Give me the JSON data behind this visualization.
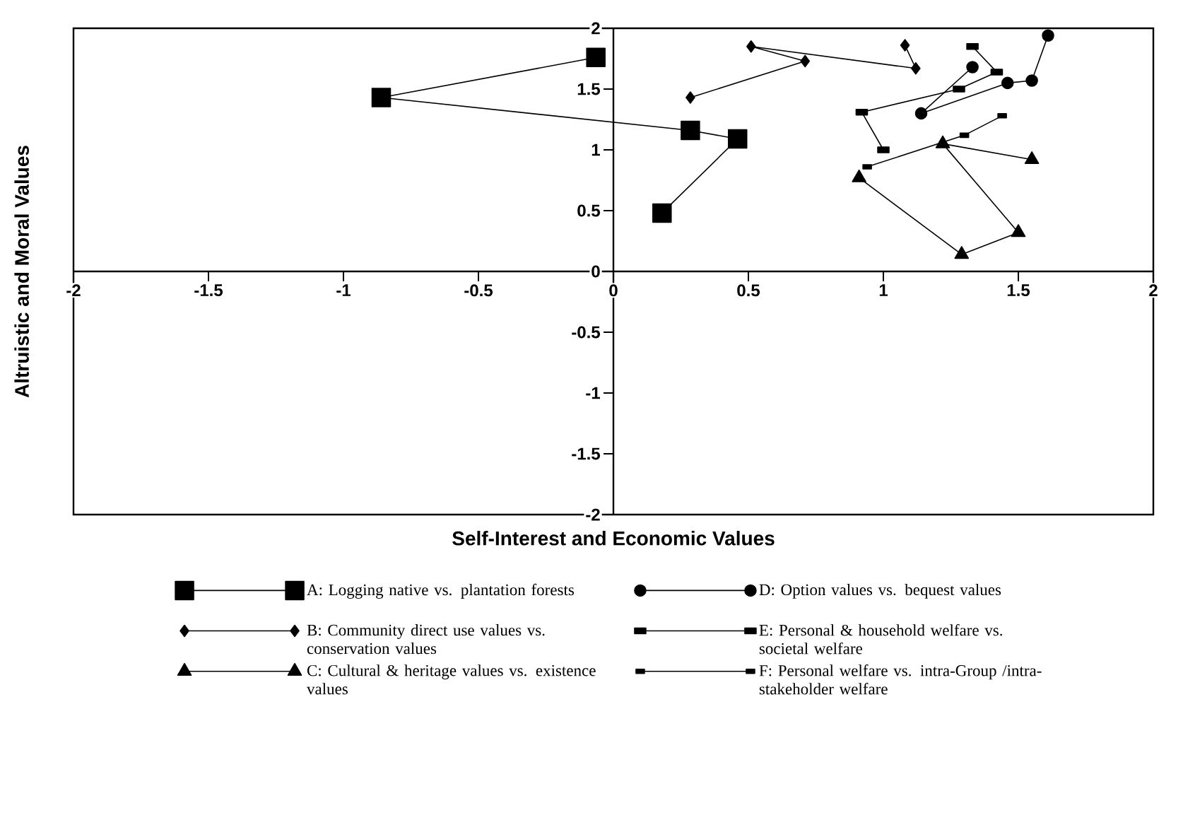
{
  "chart_data": {
    "type": "line",
    "xlabel": "Self-Interest and Economic Values",
    "ylabel": "Altruistic and Moral Values",
    "xlim": [
      -2,
      2
    ],
    "ylim": [
      -2,
      2
    ],
    "xticks": [
      -2,
      -1.5,
      -1,
      -0.5,
      0,
      0.5,
      1,
      1.5,
      2
    ],
    "yticks": [
      -2,
      -1.5,
      -1,
      -0.5,
      0,
      0.5,
      1,
      1.5,
      2
    ],
    "grid": false,
    "legend": "bottom",
    "line_style": "solid",
    "series": [
      {
        "name": "A: Logging native vs. plantation forests",
        "color": "#000000",
        "marker": "square",
        "x": [
          0.18,
          0.46,
          0.285,
          -0.86,
          -0.065
        ],
        "values": [
          0.48,
          1.09,
          1.16,
          1.43,
          1.76
        ]
      },
      {
        "name": "B: Community direct use values vs. conservation values",
        "color": "#000000",
        "marker": "diamond",
        "x": [
          0.285,
          0.71,
          0.51,
          1.12,
          1.08
        ],
        "values": [
          1.43,
          1.73,
          1.85,
          1.67,
          1.86
        ]
      },
      {
        "name": "C: Cultural & heritage values vs. existence values",
        "color": "#000000",
        "marker": "triangle",
        "x": [
          1.55,
          1.22,
          1.5,
          1.29,
          0.91
        ],
        "values": [
          0.92,
          1.05,
          0.32,
          0.14,
          0.77
        ]
      },
      {
        "name": "D: Option values vs. bequest values",
        "color": "#000000",
        "marker": "circle",
        "x": [
          1.33,
          1.14,
          1.46,
          1.55,
          1.61
        ],
        "values": [
          1.68,
          1.3,
          1.55,
          1.57,
          1.94
        ]
      },
      {
        "name": "E: Personal & household welfare vs. societal welfare",
        "color": "#000000",
        "marker": "square",
        "x": [
          1.33,
          1.42,
          1.28,
          0.92,
          1.0
        ],
        "values": [
          1.85,
          1.64,
          1.5,
          1.31,
          1.0
        ]
      },
      {
        "name": "F: Personal welfare vs. intra-Group /intra-stakeholder welfare",
        "color": "#000000",
        "marker": "square",
        "x": [
          0.94,
          1.3,
          1.44
        ],
        "values": [
          0.86,
          1.12,
          1.28
        ]
      }
    ]
  }
}
